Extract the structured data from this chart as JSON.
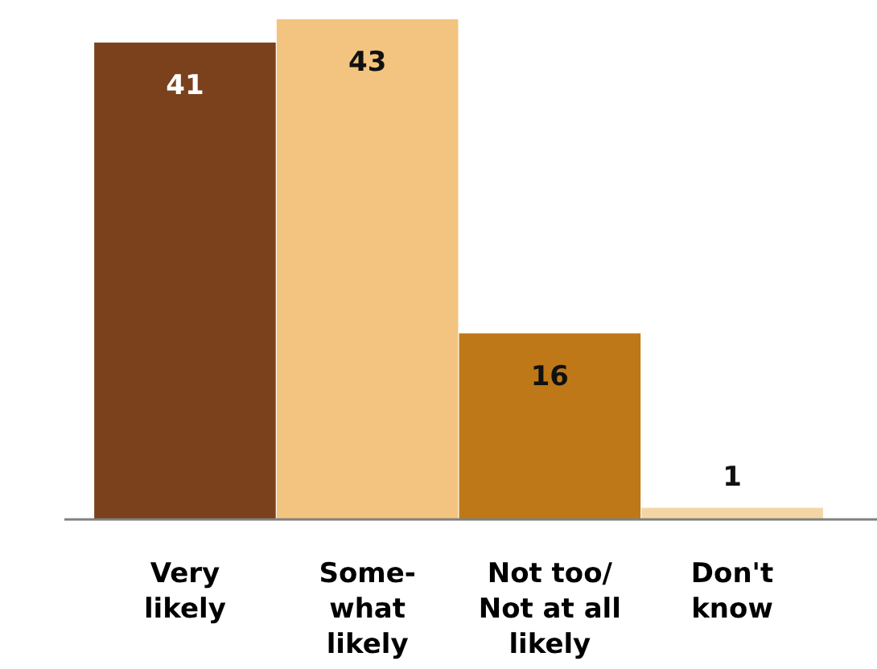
{
  "chart_data": {
    "type": "bar",
    "categories": [
      "Very\nlikely",
      "Some-\nwhat\nlikely",
      "Not too/\nNot at all\nlikely",
      "Don't\nknow"
    ],
    "values": [
      41,
      43,
      16,
      1
    ],
    "colors": [
      "#7b401c",
      "#f2c47f",
      "#bf7818",
      "#f4d6a6"
    ],
    "data_labels": true
  }
}
